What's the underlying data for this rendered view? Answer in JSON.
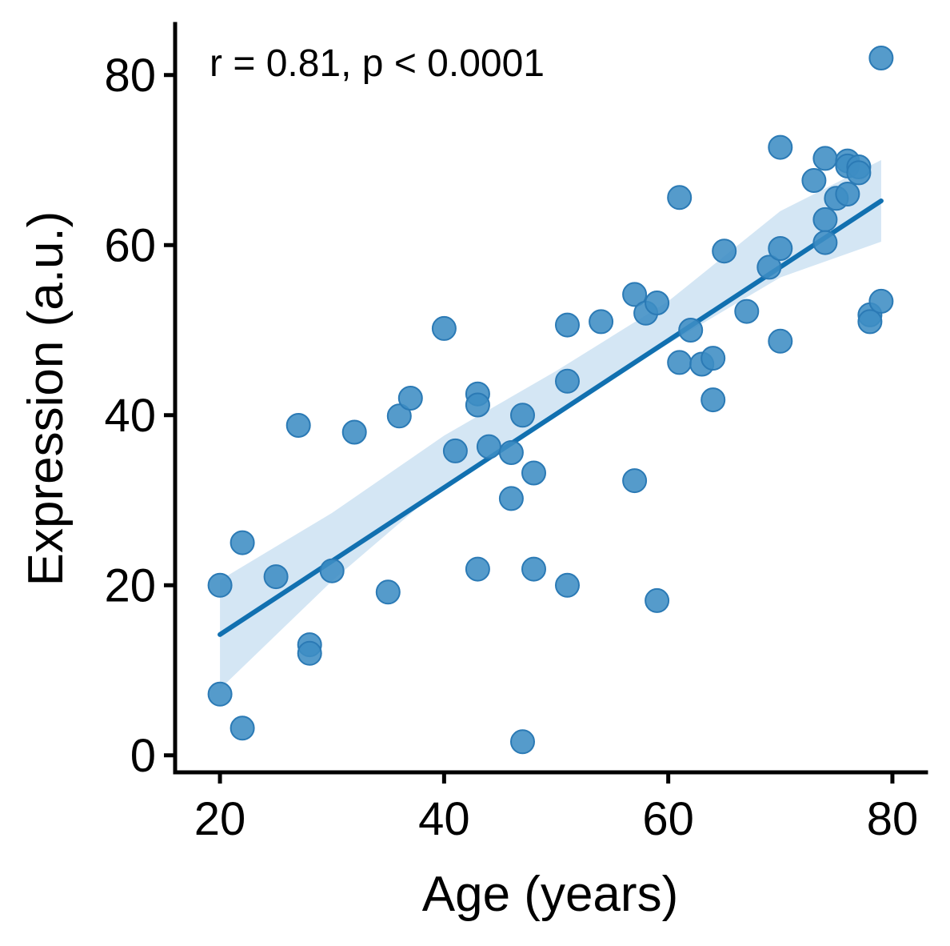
{
  "chart_data": {
    "type": "scatter",
    "xlabel": "Age (years)",
    "ylabel": "Expression (a.u.)",
    "annotation": "r = 0.81, p < 0.0001",
    "xlim": [
      16,
      83
    ],
    "ylim": [
      -2,
      86
    ],
    "xticks": [
      20,
      40,
      60,
      80
    ],
    "yticks": [
      0,
      20,
      40,
      60,
      80
    ],
    "grid": false,
    "colors": {
      "point_fill": "#3d8dc4",
      "point_stroke": "#2b7ab5",
      "line": "#1170b0",
      "band": "#c6ddf0"
    },
    "points": {
      "x": [
        20,
        20,
        22,
        22,
        25,
        27,
        28,
        28,
        30,
        32,
        35,
        36,
        37,
        40,
        41,
        43,
        43,
        43,
        44,
        46,
        46,
        47,
        47,
        48,
        48,
        51,
        51,
        51,
        54,
        57,
        57,
        58,
        59,
        59,
        61,
        61,
        62,
        63,
        64,
        64,
        65,
        67,
        69,
        70,
        70,
        70,
        73,
        74,
        74,
        74,
        75,
        76,
        76,
        76,
        77,
        77,
        78,
        78,
        79,
        79
      ],
      "y": [
        20,
        7.2,
        25,
        3.2,
        21,
        38.8,
        13,
        12,
        21.7,
        38,
        19.2,
        39.9,
        42,
        50.2,
        35.8,
        42.5,
        41.2,
        21.9,
        36.3,
        35.6,
        30.2,
        40,
        1.6,
        33.2,
        21.9,
        50.6,
        44,
        20,
        51,
        54.2,
        32.3,
        52,
        53.2,
        18.2,
        65.6,
        46.2,
        50,
        46,
        46.7,
        41.8,
        59.3,
        52.2,
        57.4,
        59.6,
        48.7,
        71.5,
        67.6,
        70.2,
        63,
        60.3,
        65.5,
        69.9,
        69.3,
        66,
        69.2,
        68.5,
        51.8,
        51,
        53.4,
        82
      ]
    },
    "regression": {
      "x": [
        20,
        79
      ],
      "y": [
        14.2,
        65.2
      ]
    },
    "confidence_band": {
      "x": [
        20,
        30,
        40,
        50,
        60,
        70,
        79
      ],
      "lower": [
        7.8,
        20.5,
        31.8,
        40.5,
        48.4,
        56.2,
        60.4
      ],
      "upper": [
        20.6,
        28.5,
        37.6,
        45.2,
        53.4,
        64.0,
        70.0
      ]
    }
  }
}
